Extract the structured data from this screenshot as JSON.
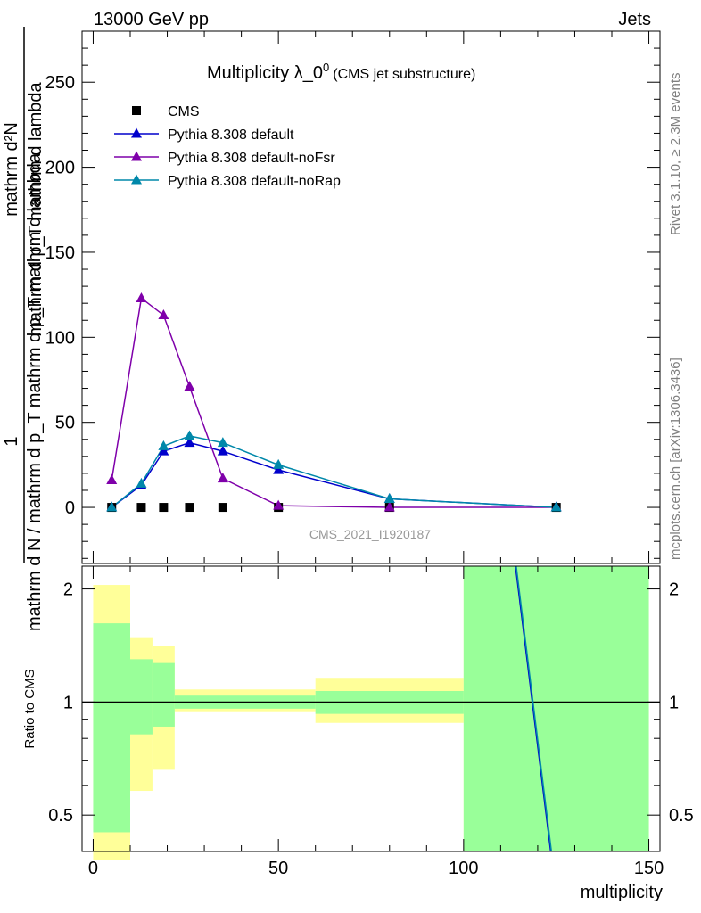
{
  "header": {
    "left": "13000 GeV pp",
    "right": "Jets"
  },
  "side_text": {
    "top": "Rivet 3.1.10, ≥ 2.3M events",
    "bottom": "mcplots.cern.ch [arXiv:1306.3436]"
  },
  "chart_data": [
    {
      "type": "line",
      "title_main": "Multiplicity λ_0",
      "title_sup": "0",
      "title_extra": "(CMS jet substructure)",
      "ylabel_top": "1",
      "ylabel_num1": "mathrm d²N",
      "ylabel_num2": "mathrm d p_T mathrm d lambda",
      "ylabel_den": "mathrm d N / mathrm d p_T mathrm d p_T mathrm d lambda",
      "watermark": "CMS_2021_I1920187",
      "xlim": [
        -3,
        153
      ],
      "ylim": [
        -33,
        280
      ],
      "y_ticks": [
        0,
        50,
        100,
        150,
        200,
        250
      ],
      "x_ticks": [
        0,
        50,
        100,
        150
      ],
      "legend_position": "top-left",
      "series": [
        {
          "name": "CMS",
          "marker": "square",
          "color": "#000000",
          "x": [
            5,
            13,
            19,
            26,
            35,
            50,
            80,
            125
          ],
          "y": [
            0,
            0,
            0,
            0,
            0,
            0,
            0,
            0
          ]
        },
        {
          "name": "Pythia 8.308 default",
          "marker": "triangle",
          "color": "#0000cc",
          "x": [
            5,
            13,
            19,
            26,
            35,
            50,
            80,
            125
          ],
          "y": [
            0,
            13,
            33,
            38,
            33,
            22,
            5,
            0
          ]
        },
        {
          "name": "Pythia 8.308 default-noFsr",
          "marker": "triangle",
          "color": "#7f00aa",
          "x": [
            5,
            13,
            19,
            26,
            35,
            50,
            80,
            125
          ],
          "y": [
            16,
            123,
            113,
            71,
            17,
            1,
            0,
            0
          ]
        },
        {
          "name": "Pythia 8.308 default-noRap",
          "marker": "triangle",
          "color": "#0088aa",
          "x": [
            5,
            13,
            19,
            26,
            35,
            50,
            80,
            125
          ],
          "y": [
            0,
            14,
            36,
            42,
            38,
            25,
            5,
            0
          ]
        }
      ]
    },
    {
      "type": "area",
      "ylabel": "Ratio to CMS",
      "xlabel": "multiplicity",
      "ylim": [
        0.4,
        2.3
      ],
      "y_ticks": [
        0.5,
        1,
        2
      ],
      "x_ticks": [
        0,
        50,
        100,
        150
      ],
      "reference_line": 1,
      "bins": [
        {
          "x0": 0,
          "x1": 10,
          "yellow": [
            0.38,
            2.05
          ],
          "green": [
            0.45,
            1.62
          ]
        },
        {
          "x0": 10,
          "x1": 16,
          "yellow": [
            0.58,
            1.48
          ],
          "green": [
            0.82,
            1.3
          ]
        },
        {
          "x0": 16,
          "x1": 22,
          "yellow": [
            0.66,
            1.41
          ],
          "green": [
            0.86,
            1.27
          ]
        },
        {
          "x0": 22,
          "x1": 60,
          "yellow": [
            0.94,
            1.08
          ],
          "green": [
            0.96,
            1.04
          ]
        },
        {
          "x0": 60,
          "x1": 100,
          "yellow": [
            0.88,
            1.16
          ],
          "green": [
            0.93,
            1.07
          ]
        },
        {
          "x0": 100,
          "x1": 150,
          "yellow": [
            0.4,
            2.3
          ],
          "green": [
            0.4,
            2.3
          ]
        }
      ],
      "series": [
        {
          "name": "Pythia 8.308 default",
          "color": "#0000cc",
          "x": [
            114,
            123.5
          ],
          "y": [
            2.3,
            0.4
          ]
        },
        {
          "name": "Pythia 8.308 default-noRap",
          "color": "#0088aa",
          "x": [
            114.2,
            123.7
          ],
          "y": [
            2.3,
            0.4
          ]
        }
      ]
    }
  ]
}
